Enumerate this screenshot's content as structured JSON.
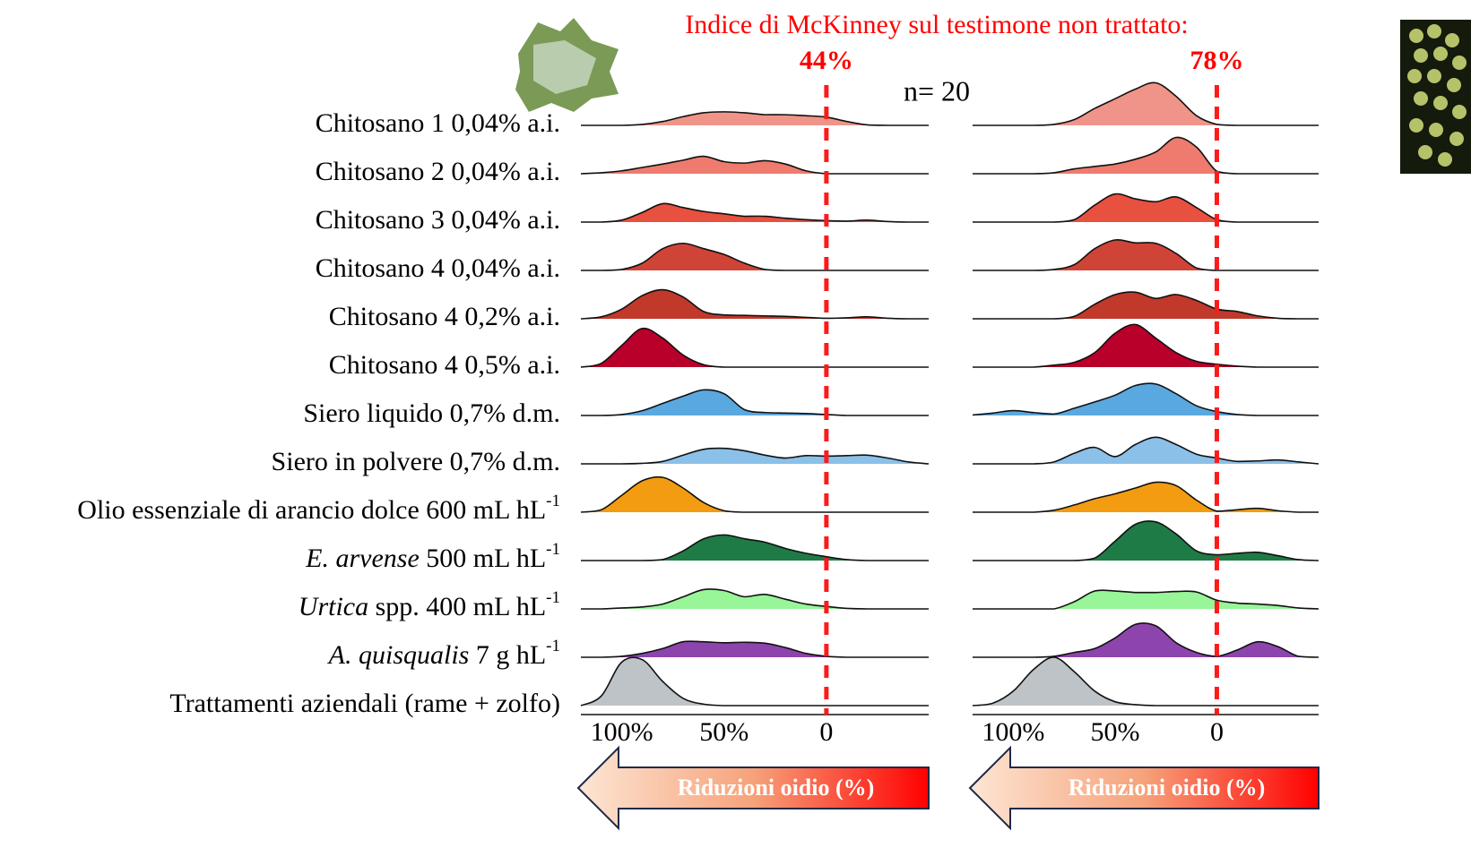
{
  "header": {
    "title": "Indice di McKinney sul testimone non trattato:",
    "n_label": "n= 20"
  },
  "row_labels": [
    [
      {
        "text": "Chitosano 1 0,04% a.i.",
        "style": "normal"
      }
    ],
    [
      {
        "text": "Chitosano 2 0,04% a.i.",
        "style": "normal"
      }
    ],
    [
      {
        "text": "Chitosano 3 0,04% a.i.",
        "style": "normal"
      }
    ],
    [
      {
        "text": "Chitosano 4 0,04% a.i.",
        "style": "normal"
      }
    ],
    [
      {
        "text": "Chitosano 4 0,2% a.i.",
        "style": "normal"
      }
    ],
    [
      {
        "text": "Chitosano 4 0,5% a.i.",
        "style": "normal"
      }
    ],
    [
      {
        "text": "Siero liquido 0,7% d.m.",
        "style": "normal"
      }
    ],
    [
      {
        "text": "Siero in polvere 0,7% d.m.",
        "style": "normal"
      }
    ],
    [
      {
        "text": "Olio essenziale di arancio dolce 600 mL hL",
        "style": "normal"
      },
      {
        "text": "-1",
        "style": "sup"
      }
    ],
    [
      {
        "text": "E. arvense",
        "style": "italic"
      },
      {
        "text": " 500 mL hL",
        "style": "normal"
      },
      {
        "text": "-1",
        "style": "sup"
      }
    ],
    [
      {
        "text": "Urtica",
        "style": "italic"
      },
      {
        "text": " spp. 400 mL hL",
        "style": "normal"
      },
      {
        "text": "-1",
        "style": "sup"
      }
    ],
    [
      {
        "text": "A. quisqualis",
        "style": "italic"
      },
      {
        "text": " 7 g hL",
        "style": "normal"
      },
      {
        "text": "-1",
        "style": "sup"
      }
    ],
    [
      {
        "text": "Trattamenti aziendali (rame + zolfo)",
        "style": "normal"
      }
    ]
  ],
  "chart_data": [
    {
      "type": "ridgeline",
      "xlabel": "Riduzioni oidio (%)",
      "reference_label": {
        "value": 44,
        "label": "44%"
      },
      "reference_x": 0,
      "xlim": [
        120,
        -50
      ],
      "xticks": [
        {
          "value": 100,
          "label": "100%"
        },
        {
          "value": 50,
          "label": "50%"
        },
        0
      ],
      "x": [
        120,
        110,
        100,
        90,
        80,
        70,
        60,
        50,
        40,
        30,
        20,
        10,
        0,
        -10,
        -20,
        -30,
        -40,
        -50
      ],
      "series": [
        {
          "color": "#f0948a",
          "values": [
            0,
            0,
            0,
            0.02,
            0.08,
            0.18,
            0.26,
            0.28,
            0.26,
            0.22,
            0.22,
            0.2,
            0.17,
            0.08,
            0.01,
            0,
            0,
            0
          ]
        },
        {
          "color": "#ee7b6e",
          "values": [
            0,
            0.02,
            0.06,
            0.13,
            0.2,
            0.28,
            0.36,
            0.25,
            0.22,
            0.27,
            0.2,
            0.06,
            0,
            0,
            0,
            0,
            0,
            0
          ]
        },
        {
          "color": "#e8503f",
          "values": [
            0,
            0,
            0.04,
            0.2,
            0.38,
            0.3,
            0.22,
            0.17,
            0.12,
            0.12,
            0.08,
            0.05,
            0.03,
            0.02,
            0.04,
            0.01,
            0,
            0
          ]
        },
        {
          "color": "#d04437",
          "values": [
            0,
            0,
            0.02,
            0.15,
            0.45,
            0.56,
            0.45,
            0.33,
            0.15,
            0.02,
            0,
            0,
            0,
            0,
            0,
            0,
            0,
            0
          ]
        },
        {
          "color": "#c0392b",
          "values": [
            0,
            0.04,
            0.2,
            0.48,
            0.6,
            0.45,
            0.15,
            0.08,
            0.07,
            0.06,
            0.05,
            0.03,
            0.01,
            0.02,
            0.04,
            0.01,
            0,
            0
          ]
        },
        {
          "color": "#b8002a",
          "values": [
            0,
            0.08,
            0.45,
            0.8,
            0.6,
            0.25,
            0.05,
            0,
            0,
            0,
            0,
            0,
            0,
            0,
            0,
            0,
            0,
            0
          ]
        },
        {
          "color": "#5aa8e0",
          "values": [
            0,
            0,
            0.02,
            0.1,
            0.25,
            0.4,
            0.53,
            0.45,
            0.12,
            0.06,
            0.05,
            0.04,
            0.02,
            0,
            0,
            0,
            0,
            0
          ]
        },
        {
          "color": "#8bc0e8",
          "values": [
            0,
            0,
            0,
            0.01,
            0.05,
            0.18,
            0.3,
            0.32,
            0.27,
            0.18,
            0.12,
            0.17,
            0.16,
            0.17,
            0.18,
            0.12,
            0.04,
            0
          ]
        },
        {
          "color": "#f39c12",
          "values": [
            0,
            0.05,
            0.35,
            0.65,
            0.72,
            0.5,
            0.2,
            0.03,
            0,
            0,
            0,
            0,
            0,
            0,
            0,
            0,
            0,
            0
          ]
        },
        {
          "color": "#1e7b45",
          "values": [
            0,
            0,
            0,
            0,
            0.02,
            0.2,
            0.45,
            0.53,
            0.45,
            0.38,
            0.25,
            0.15,
            0.08,
            0.02,
            0,
            0,
            0,
            0
          ]
        },
        {
          "color": "#98f598",
          "values": [
            0,
            0,
            0.02,
            0.04,
            0.1,
            0.25,
            0.4,
            0.38,
            0.25,
            0.3,
            0.2,
            0.1,
            0.05,
            0.01,
            0,
            0,
            0,
            0
          ]
        },
        {
          "color": "#8e44ad",
          "values": [
            0,
            0,
            0.02,
            0.08,
            0.18,
            0.32,
            0.32,
            0.3,
            0.31,
            0.29,
            0.2,
            0.08,
            0.02,
            0,
            0,
            0,
            0,
            0
          ]
        },
        {
          "color": "#bdc3c7",
          "values": [
            0,
            0.2,
            0.9,
            0.95,
            0.5,
            0.15,
            0.03,
            0,
            0,
            0,
            0,
            0,
            0,
            0,
            0,
            0,
            0,
            0
          ]
        }
      ]
    },
    {
      "type": "ridgeline",
      "xlabel": "Riduzioni oidio (%)",
      "reference_label": {
        "value": 78,
        "label": "78%"
      },
      "reference_x": 0,
      "xlim": [
        120,
        -50
      ],
      "xticks": [
        {
          "value": 100,
          "label": "100%"
        },
        {
          "value": 50,
          "label": "50%"
        },
        0
      ],
      "x": [
        120,
        110,
        100,
        90,
        80,
        70,
        60,
        50,
        40,
        30,
        20,
        10,
        0,
        -10,
        -20,
        -30,
        -40,
        -50
      ],
      "series": [
        {
          "color": "#f0948a",
          "values": [
            0,
            0,
            0,
            0,
            0.02,
            0.12,
            0.35,
            0.55,
            0.75,
            0.88,
            0.6,
            0.2,
            0.02,
            0,
            0,
            0,
            0,
            0
          ]
        },
        {
          "color": "#ee7b6e",
          "values": [
            0,
            0,
            0,
            0,
            0.02,
            0.1,
            0.15,
            0.2,
            0.3,
            0.45,
            0.75,
            0.55,
            0.05,
            0,
            0,
            0,
            0,
            0
          ]
        },
        {
          "color": "#e8503f",
          "values": [
            0,
            0,
            0,
            0,
            0,
            0.05,
            0.35,
            0.58,
            0.48,
            0.42,
            0.52,
            0.3,
            0.05,
            0,
            0,
            0,
            0,
            0
          ]
        },
        {
          "color": "#d04437",
          "values": [
            0,
            0,
            0,
            0,
            0.02,
            0.12,
            0.45,
            0.63,
            0.57,
            0.56,
            0.35,
            0.05,
            0,
            0,
            0,
            0,
            0,
            0
          ]
        },
        {
          "color": "#c0392b",
          "values": [
            0,
            0,
            0,
            0,
            0,
            0.05,
            0.3,
            0.5,
            0.55,
            0.42,
            0.5,
            0.38,
            0.2,
            0.15,
            0.06,
            0.01,
            0,
            0
          ]
        },
        {
          "color": "#b8002a",
          "values": [
            0,
            0,
            0,
            0,
            0.04,
            0.1,
            0.3,
            0.7,
            0.88,
            0.6,
            0.3,
            0.12,
            0.06,
            0.02,
            0,
            0,
            0,
            0
          ]
        },
        {
          "color": "#5aa8e0",
          "values": [
            0.01,
            0.05,
            0.1,
            0.06,
            0.03,
            0.15,
            0.28,
            0.42,
            0.62,
            0.65,
            0.45,
            0.2,
            0.08,
            0.02,
            0,
            0,
            0,
            0
          ]
        },
        {
          "color": "#8bc0e8",
          "values": [
            0,
            0,
            0,
            0,
            0.04,
            0.22,
            0.34,
            0.15,
            0.4,
            0.55,
            0.4,
            0.2,
            0.12,
            0.05,
            0.06,
            0.08,
            0.04,
            0
          ]
        },
        {
          "color": "#f39c12",
          "values": [
            0,
            0,
            0,
            0,
            0.04,
            0.15,
            0.28,
            0.38,
            0.5,
            0.62,
            0.55,
            0.25,
            0.02,
            0.05,
            0.08,
            0.03,
            0,
            0
          ]
        },
        {
          "color": "#1e7b45",
          "values": [
            0,
            0,
            0,
            0,
            0,
            0,
            0.05,
            0.4,
            0.75,
            0.8,
            0.55,
            0.2,
            0.12,
            0.15,
            0.17,
            0.1,
            0.02,
            0
          ]
        },
        {
          "color": "#98f598",
          "values": [
            0,
            0,
            0,
            0,
            0,
            0.15,
            0.37,
            0.37,
            0.34,
            0.34,
            0.36,
            0.35,
            0.18,
            0.12,
            0.1,
            0.07,
            0.02,
            0
          ]
        },
        {
          "color": "#8e44ad",
          "values": [
            0,
            0,
            0,
            0,
            0.02,
            0.1,
            0.18,
            0.4,
            0.68,
            0.65,
            0.3,
            0.1,
            0.02,
            0.15,
            0.32,
            0.22,
            0.02,
            0
          ]
        },
        {
          "color": "#bdc3c7",
          "values": [
            0,
            0.05,
            0.3,
            0.75,
            1.0,
            0.7,
            0.3,
            0.08,
            0.02,
            0,
            0,
            0,
            0,
            0,
            0,
            0,
            0,
            0
          ]
        }
      ]
    }
  ]
}
